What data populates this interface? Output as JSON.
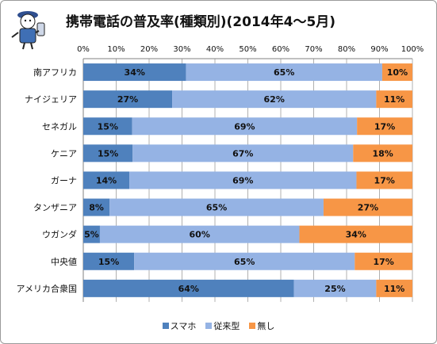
{
  "chart_data": {
    "type": "bar",
    "stacked": "percent",
    "orientation": "horizontal",
    "title": "携帯電話の普及率(種類別)(2014年4～5月)",
    "categories": [
      "南アフリカ",
      "ナイジェリア",
      "セネガル",
      "ケニア",
      "ガーナ",
      "タンザニア",
      "ウガンダ",
      "中央値",
      "アメリカ合衆国"
    ],
    "series": [
      {
        "name": "スマホ",
        "color": "#4f81bd",
        "values": [
          34,
          27,
          15,
          15,
          14,
          8,
          5,
          15,
          64
        ]
      },
      {
        "name": "従来型",
        "color": "#95b3e4",
        "values": [
          65,
          62,
          69,
          67,
          69,
          65,
          60,
          65,
          25
        ]
      },
      {
        "name": "無し",
        "color": "#f79646",
        "values": [
          10,
          11,
          17,
          18,
          17,
          27,
          34,
          17,
          11
        ]
      }
    ],
    "xlim": [
      0,
      100
    ],
    "xticks": [
      "0%",
      "10%",
      "20%",
      "30%",
      "40%",
      "50%",
      "60%",
      "70%",
      "80%",
      "90%",
      "100%"
    ],
    "value_suffix": "%",
    "grid": true,
    "legend": "bottom"
  }
}
